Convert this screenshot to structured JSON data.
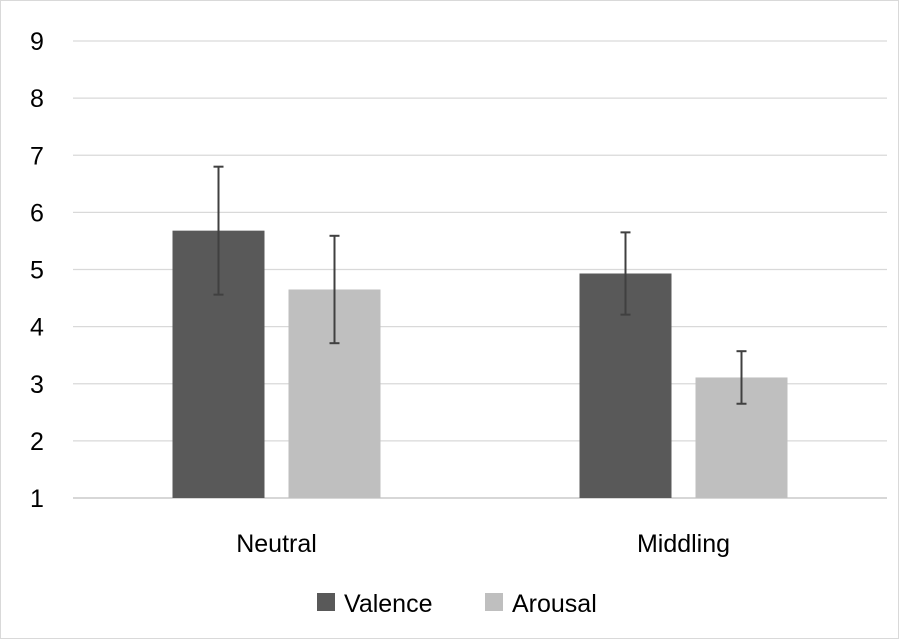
{
  "chart_data": {
    "type": "bar",
    "title": "",
    "xlabel": "",
    "ylabel": "",
    "categories": [
      "Neutral",
      "Middling"
    ],
    "ylim": [
      1,
      9
    ],
    "yticks": [
      1,
      2,
      3,
      4,
      5,
      6,
      7,
      8,
      9
    ],
    "grid": true,
    "legend": "bottom",
    "series": [
      {
        "name": "Valence",
        "color": "#595959",
        "values": [
          5.68,
          4.93
        ],
        "error": [
          1.12,
          0.72
        ]
      },
      {
        "name": "Arousal",
        "color": "#bfbfbf",
        "values": [
          4.65,
          3.11
        ],
        "error": [
          0.94,
          0.46
        ]
      }
    ]
  }
}
